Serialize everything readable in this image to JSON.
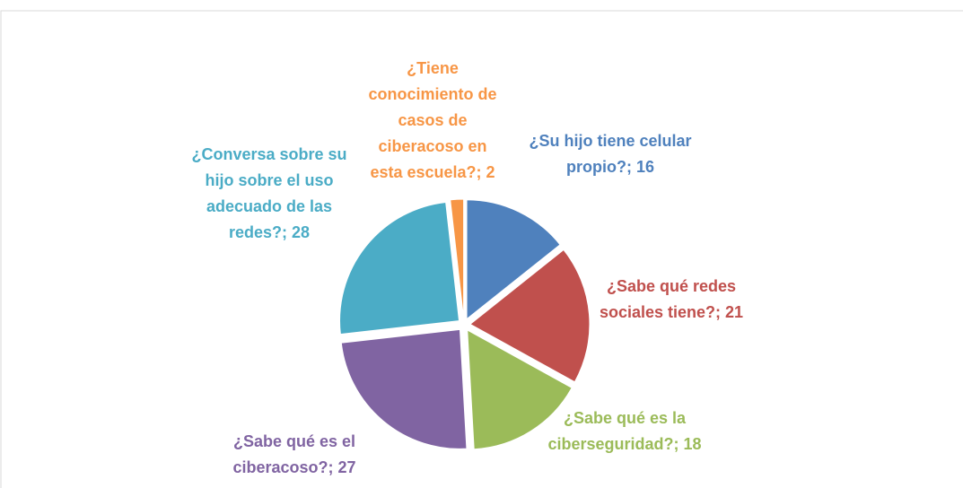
{
  "chart_data": {
    "type": "pie",
    "values": [
      16,
      21,
      18,
      27,
      28,
      2
    ],
    "value_labels": [
      "¿Su hijo tiene celular propio?; 16",
      "¿Sabe qué redes sociales tiene?; 21",
      "¿Sabe qué es la ciberseguridad?; 18",
      "¿Sabe qué es el ciberacoso?; 27",
      "¿Conversa sobre su hijo sobre el uso adecuado de las redes?; 28",
      "¿Tiene conocimiento de casos de ciberacoso en esta escuela?; 2"
    ],
    "colors": [
      "#4f81bd",
      "#c0504d",
      "#9bbb59",
      "#8064a2",
      "#4bacc6",
      "#f79646"
    ]
  }
}
